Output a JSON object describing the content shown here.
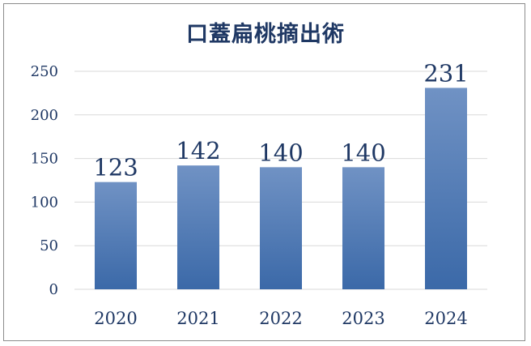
{
  "chart_data": {
    "type": "bar",
    "title": "口蓋扁桃摘出術",
    "categories": [
      "2020",
      "2021",
      "2022",
      "2023",
      "2024"
    ],
    "values": [
      123,
      142,
      140,
      140,
      231
    ],
    "ylim": [
      0,
      250
    ],
    "yticks": [
      0,
      50,
      100,
      150,
      200,
      250
    ],
    "grid": true,
    "data_labels": true,
    "legend": "none",
    "bar_color_top": "#7092c4",
    "bar_color_bottom": "#3b69a8",
    "text_color": "#1f3864",
    "grid_color": "#d9d9d9"
  }
}
